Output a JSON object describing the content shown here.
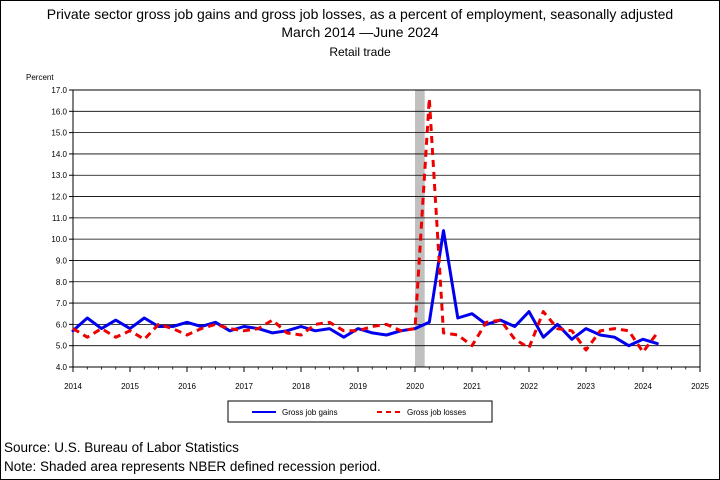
{
  "chart_data": {
    "type": "line",
    "title": "Private sector gross job gains and gross job losses, as a percent of employment, seasonally adjusted",
    "subtitle": "March 2014 —June 2024",
    "subtitle2": "Retail trade",
    "ylabel": "Percent",
    "ylim": [
      4.0,
      17.0
    ],
    "yticks": [
      "4.0",
      "5.0",
      "6.0",
      "7.0",
      "8.0",
      "9.0",
      "10.0",
      "11.0",
      "12.0",
      "13.0",
      "14.0",
      "15.0",
      "16.0",
      "17.0"
    ],
    "xlim": [
      2014,
      2025
    ],
    "xticks": [
      "2014",
      "2015",
      "2016",
      "2017",
      "2018",
      "2019",
      "2020",
      "2021",
      "2022",
      "2023",
      "2024",
      "2025"
    ],
    "recession": {
      "start": 2020.0,
      "end": 2020.17
    },
    "x": [
      2014.0,
      2014.25,
      2014.5,
      2014.75,
      2015.0,
      2015.25,
      2015.5,
      2015.75,
      2016.0,
      2016.25,
      2016.5,
      2016.75,
      2017.0,
      2017.25,
      2017.5,
      2017.75,
      2018.0,
      2018.25,
      2018.5,
      2018.75,
      2019.0,
      2019.25,
      2019.5,
      2019.75,
      2020.0,
      2020.25,
      2020.5,
      2020.75,
      2021.0,
      2021.25,
      2021.5,
      2021.75,
      2022.0,
      2022.25,
      2022.5,
      2022.75,
      2023.0,
      2023.25,
      2023.5,
      2023.75,
      2024.0,
      2024.25
    ],
    "series": [
      {
        "name": "Gross job gains",
        "color": "#0000ee",
        "dash": "solid",
        "values": [
          5.7,
          6.3,
          5.8,
          6.2,
          5.8,
          6.3,
          5.9,
          5.9,
          6.1,
          5.9,
          6.1,
          5.7,
          5.9,
          5.8,
          5.6,
          5.7,
          5.9,
          5.7,
          5.8,
          5.4,
          5.8,
          5.6,
          5.5,
          5.7,
          5.8,
          6.1,
          10.4,
          6.3,
          6.5,
          6.0,
          6.2,
          5.9,
          6.6,
          5.4,
          6.0,
          5.3,
          5.8,
          5.5,
          5.4,
          5.0,
          5.3,
          5.1
        ]
      },
      {
        "name": "Gross job losses",
        "color": "#ee0000",
        "dash": "dashed",
        "values": [
          5.8,
          5.4,
          5.8,
          5.4,
          5.7,
          5.3,
          6.0,
          5.8,
          5.5,
          5.8,
          6.0,
          5.8,
          5.7,
          5.8,
          6.2,
          5.6,
          5.5,
          6.0,
          6.1,
          5.7,
          5.7,
          5.9,
          6.0,
          5.7,
          5.8,
          16.6,
          5.6,
          5.5,
          5.0,
          6.1,
          6.2,
          5.3,
          4.9,
          6.6,
          5.8,
          5.7,
          4.8,
          5.7,
          5.8,
          5.7,
          4.7,
          5.6
        ]
      }
    ]
  },
  "source_note": "Source: U.S. Bureau of Labor Statistics",
  "shading_note": "Note: Shaded area represents NBER defined recession period."
}
